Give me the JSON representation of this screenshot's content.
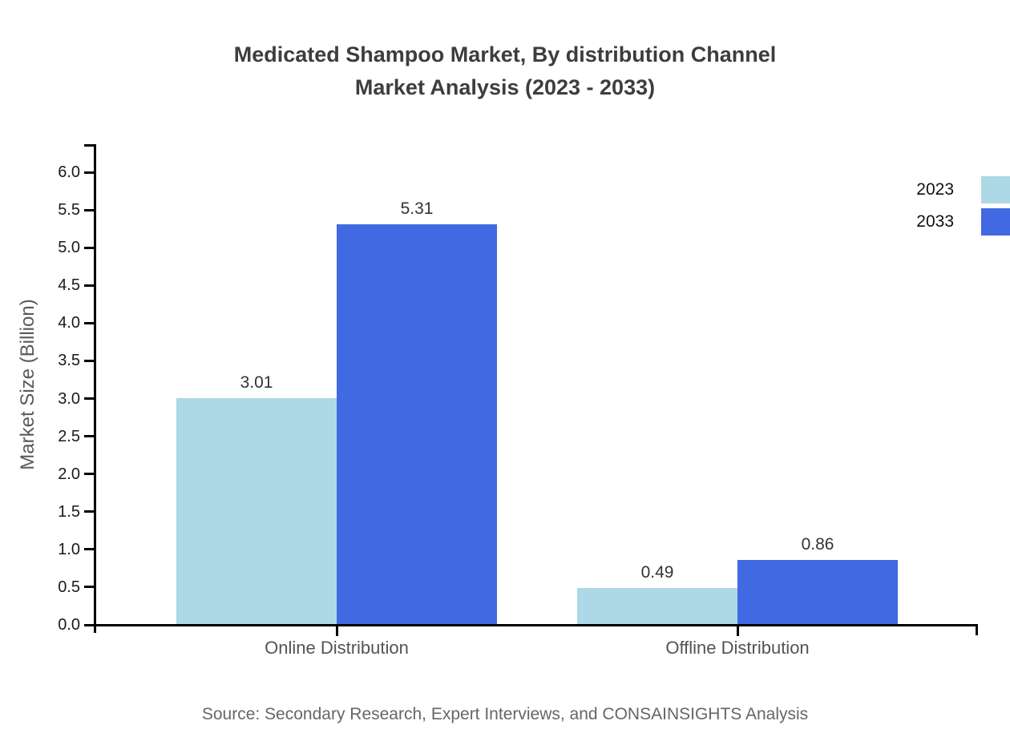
{
  "title": {
    "line1": "Medicated Shampoo Market, By distribution Channel",
    "line2": "Market Analysis (2023 - 2033)"
  },
  "source_note": "Source: Secondary Research, Expert Interviews, and CONSAINSIGHTS Analysis",
  "chart_data": {
    "type": "bar",
    "title": "Medicated Shampoo Market, By distribution Channel Market Analysis (2023 - 2033)",
    "categories": [
      "Online Distribution",
      "Offline Distribution"
    ],
    "series": [
      {
        "name": "2023",
        "color": "#ADD8E6",
        "values": [
          3.01,
          0.49
        ]
      },
      {
        "name": "2033",
        "color": "#4169E1",
        "values": [
          5.31,
          0.86
        ]
      }
    ],
    "xlabel": "",
    "ylabel": "Market Size (Billion)",
    "ylim": [
      0,
      6.0
    ],
    "ytick_step": 0.5,
    "ytick_labels": [
      "0.0",
      "0.5",
      "1.0",
      "1.5",
      "2.0",
      "2.5",
      "3.0",
      "3.5",
      "4.0",
      "4.5",
      "5.0",
      "5.5",
      "6.0"
    ],
    "grid": false,
    "legend_position": "top-right",
    "bar_value_labels": true
  },
  "colors": {
    "title": "#3d3d3d",
    "axis": "#000000",
    "tick_label": "#1a1a1a",
    "category_label": "#545454",
    "value_label": "#333333",
    "axis_title": "#595959",
    "source": "#666666",
    "background": "#ffffff"
  }
}
